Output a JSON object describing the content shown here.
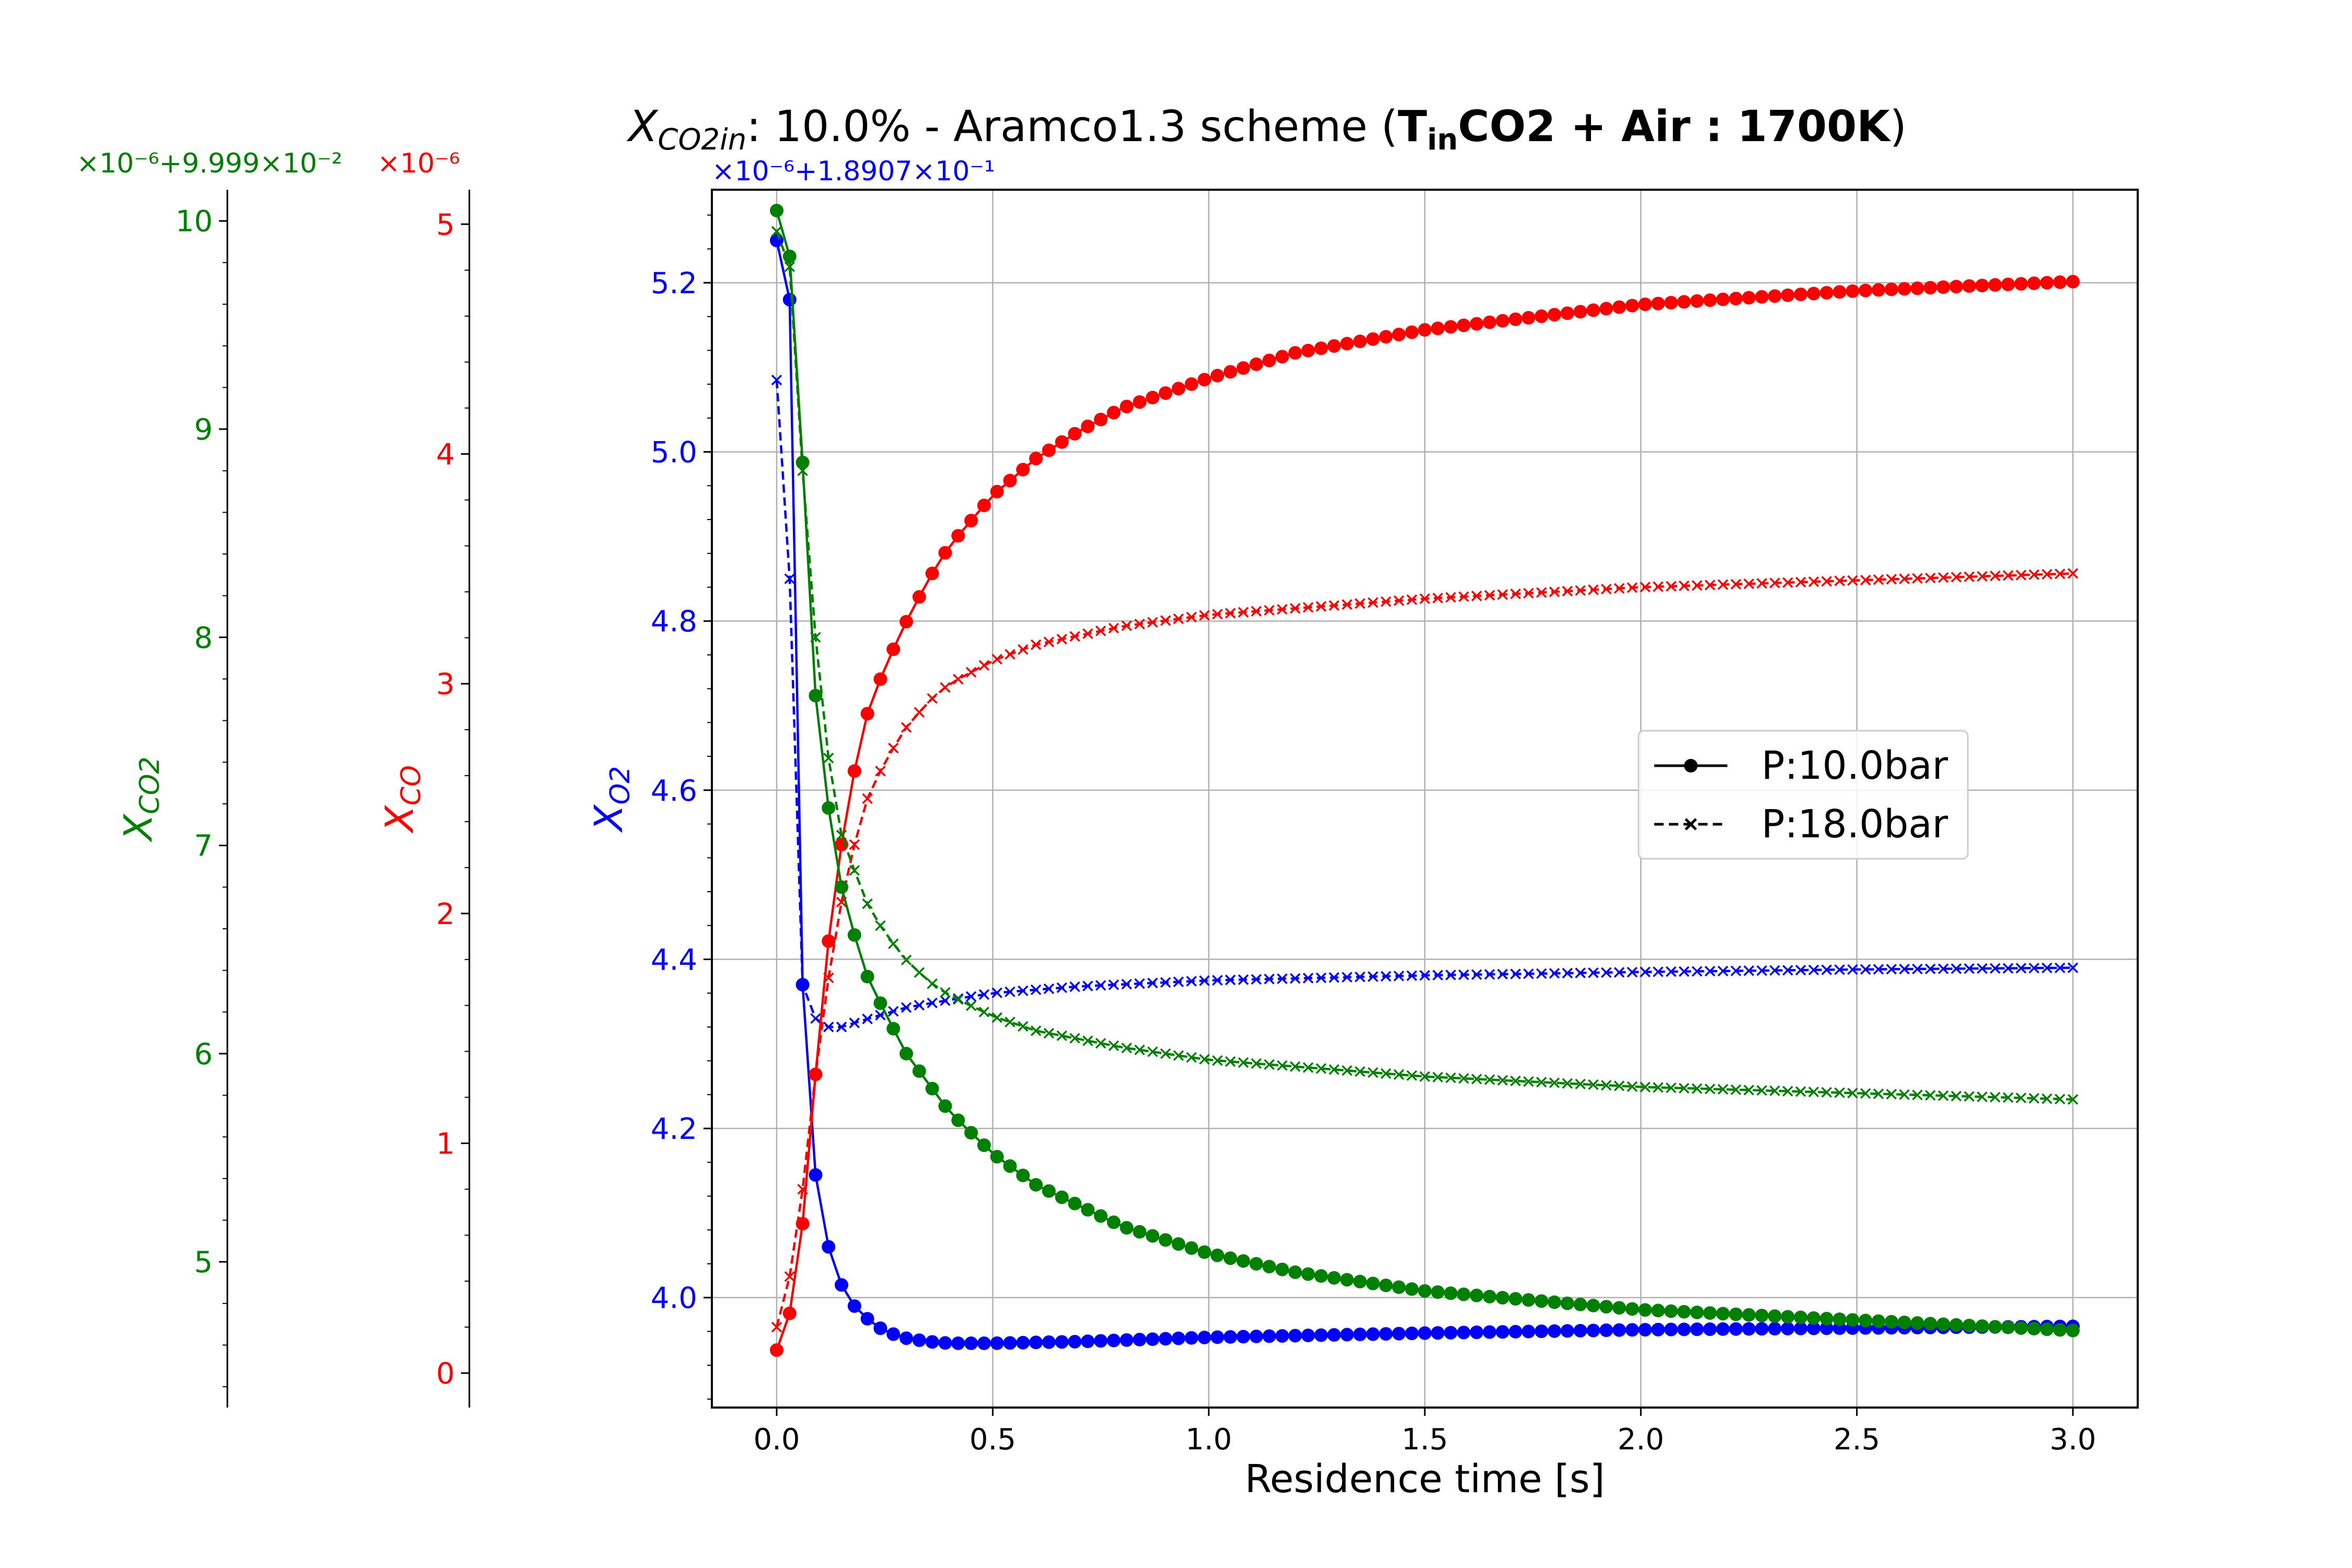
{
  "chart_data": {
    "type": "line",
    "title": {
      "main": "X",
      "main_sub": "CO2in",
      "middle": ": 10.0% - Aramco1.3 scheme (",
      "bold_T": "T",
      "bold_sub": "in",
      "bold_rest": "CO2 + Air : 1700K",
      "close": ")"
    },
    "xlabel": "Residence time [s]",
    "xlim": [
      -0.15,
      3.15
    ],
    "xticks": [
      "0.0",
      "0.5",
      "1.0",
      "1.5",
      "2.0",
      "2.5",
      "3.0"
    ],
    "grid": true,
    "legend": {
      "placement": "center-right",
      "entries": [
        {
          "label": "P:10.0bar",
          "style": "solid",
          "marker": "circle"
        },
        {
          "label": "P:18.0bar",
          "style": "dashed",
          "marker": "x"
        }
      ]
    },
    "axes": {
      "o2": {
        "label_main": "X",
        "label_sub": "O2",
        "color": "#0000ff",
        "offset_text": "×10⁻⁶+1.8907×10⁻¹",
        "ylim": [
          3.87,
          5.31
        ],
        "ticks": [
          "4.0",
          "4.2",
          "4.4",
          "4.6",
          "4.8",
          "5.0",
          "5.2"
        ]
      },
      "co": {
        "label_main": "X",
        "label_sub": "CO",
        "color": "#ff0000",
        "offset_text": "×10⁻⁶",
        "ylim": [
          -0.15,
          5.15
        ],
        "ticks": [
          "0",
          "1",
          "2",
          "3",
          "4",
          "5"
        ]
      },
      "co2": {
        "label_main": "X",
        "label_sub": "CO2",
        "color": "#008000",
        "offset_text": "×10⁻⁶+9.999×10⁻²",
        "ylim": [
          4.3,
          10.15
        ],
        "ticks": [
          "5",
          "6",
          "7",
          "8",
          "9",
          "10"
        ]
      }
    },
    "series": [
      {
        "name": "P:10.0bar",
        "axis": "o2",
        "color": "#0000ff",
        "style": "solid",
        "marker": "circle",
        "points": [
          [
            0.0,
            5.25
          ],
          [
            0.03,
            5.18
          ],
          [
            0.06,
            4.37
          ],
          [
            0.09,
            4.145
          ],
          [
            0.12,
            4.06
          ],
          [
            0.15,
            4.015
          ],
          [
            0.18,
            3.99
          ],
          [
            0.21,
            3.975
          ],
          [
            0.25,
            3.96
          ],
          [
            0.3,
            3.952
          ],
          [
            0.35,
            3.948
          ],
          [
            0.4,
            3.946
          ],
          [
            0.5,
            3.946
          ],
          [
            0.7,
            3.948
          ],
          [
            1.0,
            3.953
          ],
          [
            1.5,
            3.958
          ],
          [
            2.0,
            3.962
          ],
          [
            2.5,
            3.964
          ],
          [
            3.0,
            3.966
          ]
        ]
      },
      {
        "name": "P:18.0bar",
        "axis": "o2",
        "color": "#0000ff",
        "style": "dashed",
        "marker": "x",
        "points": [
          [
            0.0,
            5.085
          ],
          [
            0.03,
            4.85
          ],
          [
            0.06,
            4.37
          ],
          [
            0.09,
            4.33
          ],
          [
            0.12,
            4.32
          ],
          [
            0.15,
            4.32
          ],
          [
            0.2,
            4.328
          ],
          [
            0.3,
            4.343
          ],
          [
            0.4,
            4.352
          ],
          [
            0.5,
            4.36
          ],
          [
            0.7,
            4.368
          ],
          [
            1.0,
            4.375
          ],
          [
            1.5,
            4.381
          ],
          [
            2.0,
            4.385
          ],
          [
            2.5,
            4.388
          ],
          [
            3.0,
            4.39
          ]
        ]
      },
      {
        "name": "P:10.0bar",
        "axis": "co",
        "color": "#ff0000",
        "style": "solid",
        "marker": "circle",
        "points": [
          [
            0.0,
            0.1
          ],
          [
            0.03,
            0.26
          ],
          [
            0.06,
            0.65
          ],
          [
            0.09,
            1.3
          ],
          [
            0.12,
            1.88
          ],
          [
            0.15,
            2.3
          ],
          [
            0.18,
            2.62
          ],
          [
            0.21,
            2.87
          ],
          [
            0.25,
            3.07
          ],
          [
            0.3,
            3.27
          ],
          [
            0.35,
            3.45
          ],
          [
            0.4,
            3.6
          ],
          [
            0.5,
            3.82
          ],
          [
            0.6,
            3.98
          ],
          [
            0.7,
            4.1
          ],
          [
            0.8,
            4.2
          ],
          [
            1.0,
            4.33
          ],
          [
            1.2,
            4.44
          ],
          [
            1.5,
            4.54
          ],
          [
            2.0,
            4.65
          ],
          [
            2.5,
            4.71
          ],
          [
            3.0,
            4.75
          ]
        ]
      },
      {
        "name": "P:18.0bar",
        "axis": "co",
        "color": "#ff0000",
        "style": "dashed",
        "marker": "x",
        "points": [
          [
            0.0,
            0.2
          ],
          [
            0.03,
            0.42
          ],
          [
            0.06,
            0.8
          ],
          [
            0.09,
            1.3
          ],
          [
            0.12,
            1.72
          ],
          [
            0.15,
            2.05
          ],
          [
            0.18,
            2.3
          ],
          [
            0.21,
            2.5
          ],
          [
            0.25,
            2.66
          ],
          [
            0.3,
            2.81
          ],
          [
            0.35,
            2.92
          ],
          [
            0.4,
            3.0
          ],
          [
            0.5,
            3.1
          ],
          [
            0.6,
            3.17
          ],
          [
            0.8,
            3.25
          ],
          [
            1.0,
            3.3
          ],
          [
            1.5,
            3.37
          ],
          [
            2.0,
            3.42
          ],
          [
            2.5,
            3.45
          ],
          [
            3.0,
            3.48
          ]
        ]
      },
      {
        "name": "P:10.0bar",
        "axis": "co2",
        "color": "#008000",
        "style": "solid",
        "marker": "circle",
        "points": [
          [
            0.0,
            10.05
          ],
          [
            0.03,
            9.83
          ],
          [
            0.06,
            8.84
          ],
          [
            0.09,
            7.72
          ],
          [
            0.12,
            7.18
          ],
          [
            0.15,
            6.8
          ],
          [
            0.18,
            6.57
          ],
          [
            0.21,
            6.37
          ],
          [
            0.25,
            6.2
          ],
          [
            0.3,
            6.0
          ],
          [
            0.35,
            5.86
          ],
          [
            0.4,
            5.72
          ],
          [
            0.5,
            5.52
          ],
          [
            0.6,
            5.37
          ],
          [
            0.8,
            5.17
          ],
          [
            1.0,
            5.04
          ],
          [
            1.2,
            4.95
          ],
          [
            1.5,
            4.86
          ],
          [
            2.0,
            4.77
          ],
          [
            2.5,
            4.72
          ],
          [
            3.0,
            4.67
          ]
        ]
      },
      {
        "name": "P:18.0bar",
        "axis": "co2",
        "color": "#008000",
        "style": "dashed",
        "marker": "x",
        "points": [
          [
            0.0,
            9.95
          ],
          [
            0.03,
            9.78
          ],
          [
            0.06,
            8.8
          ],
          [
            0.09,
            8.0
          ],
          [
            0.12,
            7.42
          ],
          [
            0.15,
            7.05
          ],
          [
            0.18,
            6.88
          ],
          [
            0.21,
            6.72
          ],
          [
            0.25,
            6.58
          ],
          [
            0.3,
            6.45
          ],
          [
            0.35,
            6.35
          ],
          [
            0.4,
            6.28
          ],
          [
            0.5,
            6.18
          ],
          [
            0.6,
            6.11
          ],
          [
            0.8,
            6.03
          ],
          [
            1.0,
            5.97
          ],
          [
            1.5,
            5.89
          ],
          [
            2.0,
            5.84
          ],
          [
            2.5,
            5.81
          ],
          [
            3.0,
            5.78
          ]
        ]
      }
    ]
  }
}
